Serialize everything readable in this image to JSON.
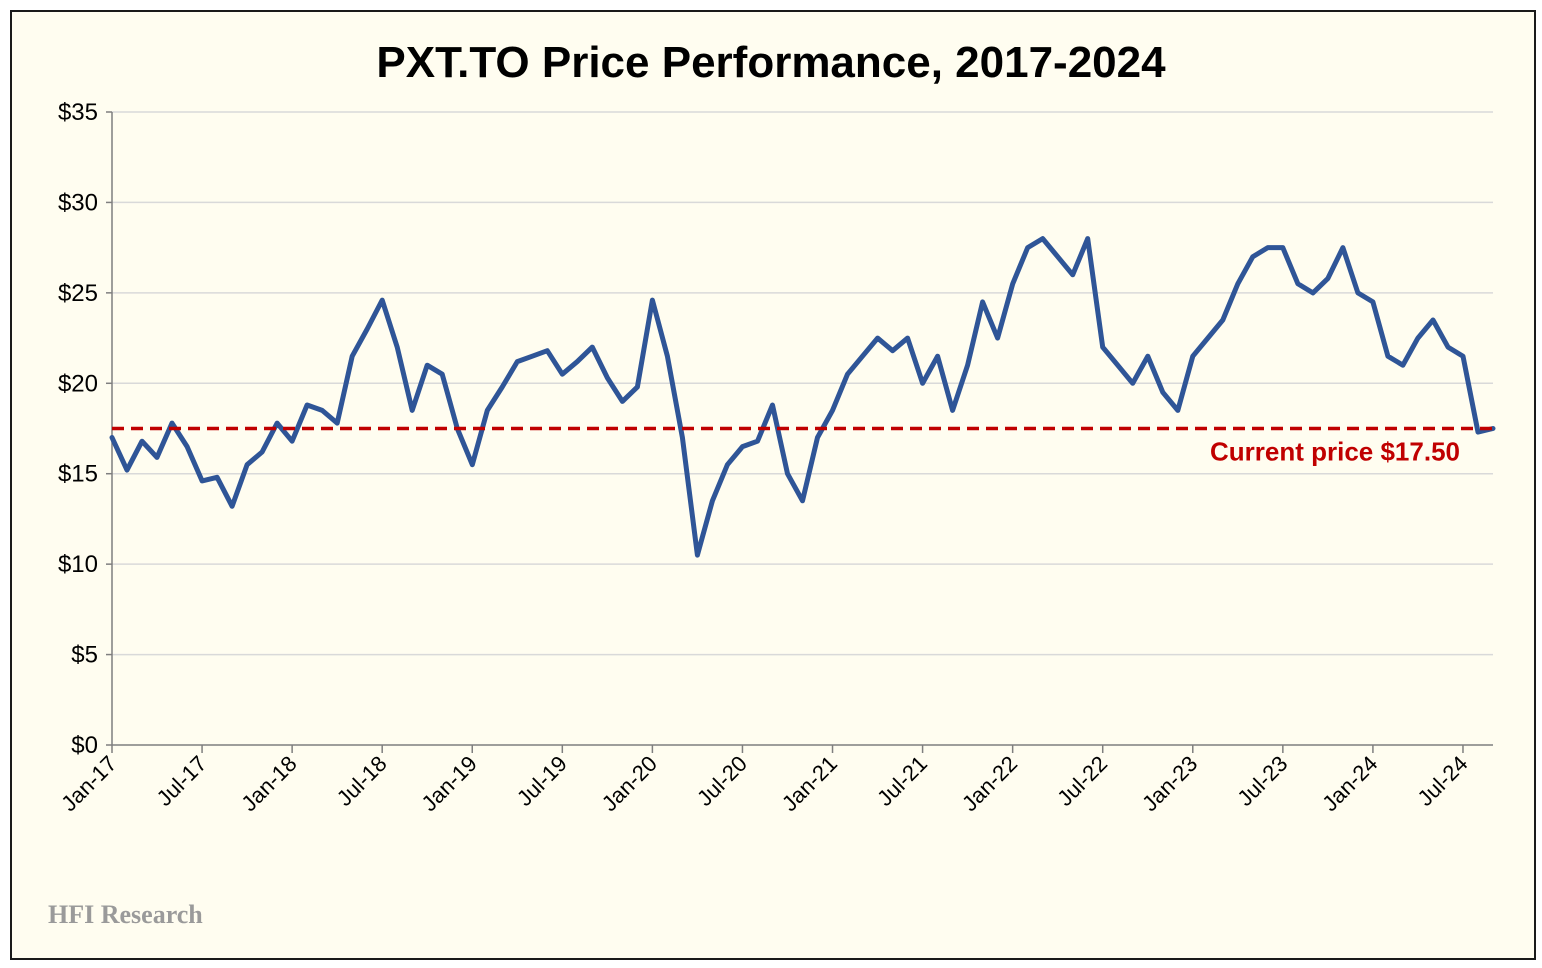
{
  "chart_data": {
    "type": "line",
    "title": "PXT.TO Price Performance, 2017-2024",
    "xlabel": "",
    "ylabel": "",
    "ylim": [
      0,
      35
    ],
    "xlim": [
      "2017-01",
      "2024-09"
    ],
    "y_ticks": [
      0,
      5,
      10,
      15,
      20,
      25,
      30,
      35
    ],
    "y_tick_labels": [
      "$0",
      "$5",
      "$10",
      "$15",
      "$20",
      "$25",
      "$30",
      "$35"
    ],
    "x_tick_labels": [
      "Jan-17",
      "Jul-17",
      "Jan-18",
      "Jul-18",
      "Jan-19",
      "Jul-19",
      "Jan-20",
      "Jul-20",
      "Jan-21",
      "Jul-21",
      "Jan-22",
      "Jul-22",
      "Jan-23",
      "Jul-23",
      "Jan-24",
      "Jul-24"
    ],
    "grid": "horizontal",
    "series": [
      {
        "color": "#2f5597",
        "x": [
          "2017-01",
          "2017-02",
          "2017-03",
          "2017-04",
          "2017-05",
          "2017-06",
          "2017-07",
          "2017-08",
          "2017-09",
          "2017-10",
          "2017-11",
          "2017-12",
          "2018-01",
          "2018-02",
          "2018-03",
          "2018-04",
          "2018-05",
          "2018-06",
          "2018-07",
          "2018-08",
          "2018-09",
          "2018-10",
          "2018-11",
          "2018-12",
          "2019-01",
          "2019-02",
          "2019-03",
          "2019-04",
          "2019-05",
          "2019-06",
          "2019-07",
          "2019-08",
          "2019-09",
          "2019-10",
          "2019-11",
          "2019-12",
          "2020-01",
          "2020-02",
          "2020-03",
          "2020-04",
          "2020-05",
          "2020-06",
          "2020-07",
          "2020-08",
          "2020-09",
          "2020-10",
          "2020-11",
          "2020-12",
          "2021-01",
          "2021-02",
          "2021-03",
          "2021-04",
          "2021-05",
          "2021-06",
          "2021-07",
          "2021-08",
          "2021-09",
          "2021-10",
          "2021-11",
          "2021-12",
          "2022-01",
          "2022-02",
          "2022-03",
          "2022-04",
          "2022-05",
          "2022-06",
          "2022-07",
          "2022-08",
          "2022-09",
          "2022-10",
          "2022-11",
          "2022-12",
          "2023-01",
          "2023-02",
          "2023-03",
          "2023-04",
          "2023-05",
          "2023-06",
          "2023-07",
          "2023-08",
          "2023-09",
          "2023-10",
          "2023-11",
          "2023-12",
          "2024-01",
          "2024-02",
          "2024-03",
          "2024-04",
          "2024-05",
          "2024-06",
          "2024-07",
          "2024-08",
          "2024-09"
        ],
        "values": [
          17.0,
          15.2,
          16.8,
          15.9,
          17.8,
          16.5,
          14.6,
          14.8,
          13.2,
          15.5,
          16.2,
          17.8,
          16.8,
          18.8,
          18.5,
          17.8,
          21.5,
          23.0,
          24.6,
          22.0,
          18.5,
          21.0,
          20.5,
          17.5,
          15.5,
          18.5,
          19.8,
          21.2,
          21.5,
          21.8,
          20.5,
          21.2,
          22.0,
          20.3,
          19.0,
          19.8,
          24.6,
          21.5,
          17.0,
          10.5,
          13.5,
          15.5,
          16.5,
          16.8,
          18.8,
          15.0,
          13.5,
          17.0,
          18.5,
          20.5,
          21.5,
          22.5,
          21.8,
          22.5,
          20.0,
          21.5,
          18.5,
          21.0,
          24.5,
          22.5,
          25.5,
          27.5,
          28.0,
          27.0,
          26.0,
          28.0,
          22.0,
          21.0,
          20.0,
          21.5,
          19.5,
          18.5,
          21.5,
          22.5,
          23.5,
          25.5,
          27.0,
          27.5,
          27.5,
          25.5,
          25.0,
          25.8,
          27.5,
          25.0,
          24.5,
          21.5,
          21.0,
          22.5,
          23.5,
          22.0,
          21.5,
          17.3,
          17.5
        ]
      },
      {
        "name": "Current price $17.50",
        "color": "#c00000",
        "style": "dashed",
        "x": [
          "2017-01",
          "2024-09"
        ],
        "values": [
          17.5,
          17.5
        ]
      }
    ],
    "annotations": [
      {
        "text": "Current price $17.50",
        "color": "#c00000"
      }
    ]
  },
  "footer": {
    "watermark": "HFI Research"
  }
}
